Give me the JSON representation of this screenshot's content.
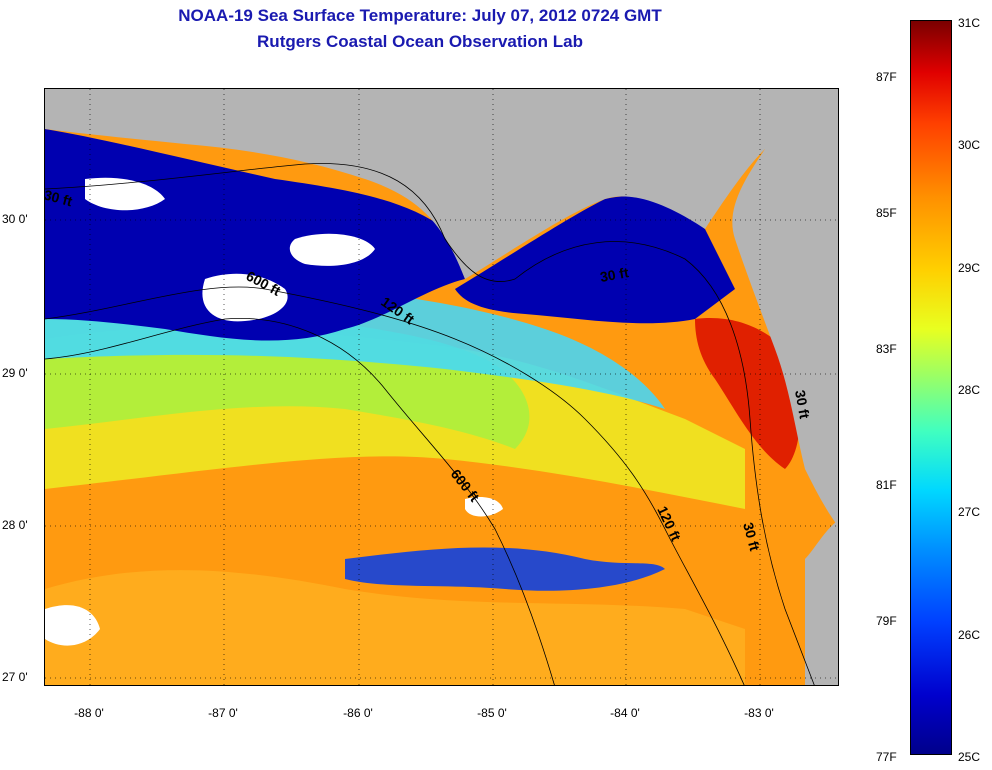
{
  "title": {
    "line1": "NOAA-19 Sea Surface Temperature:  July 07, 2012 0724 GMT",
    "line2": "Rutgers Coastal Ocean Observation Lab"
  },
  "axes": {
    "latitude_labels": [
      "30 0'",
      "29 0'",
      "28 0'",
      "27 0'"
    ],
    "longitude_labels": [
      "-88 0'",
      "-87 0'",
      "-86 0'",
      "-85 0'",
      "-84 0'",
      "-83 0'"
    ]
  },
  "contours": {
    "labels": [
      "600 ft",
      "120 ft",
      "600 ft",
      "120 ft",
      "30 ft",
      "30 ft",
      "30 ft",
      "30 ft"
    ]
  },
  "colorbar": {
    "celsius_labels": [
      "31C",
      "30C",
      "29C",
      "28C",
      "27C",
      "26C",
      "25C"
    ],
    "fahrenheit_labels": [
      "87F",
      "85F",
      "83F",
      "81F",
      "79F",
      "77F"
    ],
    "min_c": 25,
    "max_c": 31
  },
  "colors": {
    "land": "#b4b4b4",
    "title": "#1a1ab0",
    "cloud": "#ffffff",
    "cold": "#00008b",
    "warm": "#ff8c00",
    "hot": "#d00000"
  }
}
